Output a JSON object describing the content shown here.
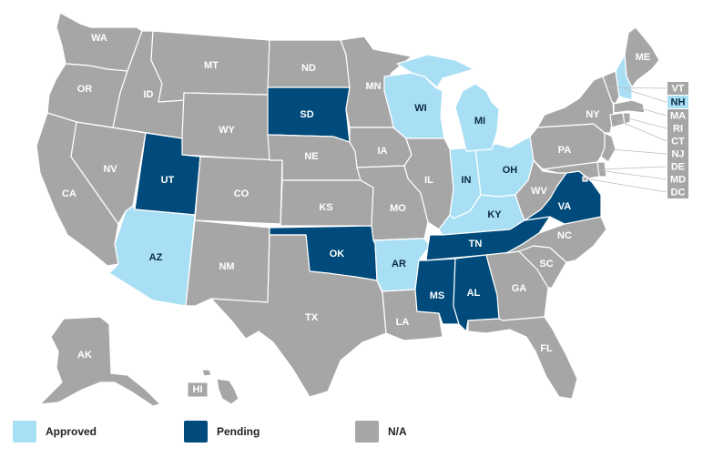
{
  "colors": {
    "approved": "#a9dff4",
    "pending": "#004b7b",
    "na": "#a6a6a6",
    "text_light": "#ffffff",
    "text_dark": "#0b2a45"
  },
  "legend": [
    {
      "key": "approved",
      "label": "Approved"
    },
    {
      "key": "pending",
      "label": "Pending"
    },
    {
      "key": "na",
      "label": "N/A"
    }
  ],
  "states": [
    {
      "code": "WA",
      "status": "na"
    },
    {
      "code": "OR",
      "status": "na"
    },
    {
      "code": "CA",
      "status": "na"
    },
    {
      "code": "ID",
      "status": "na"
    },
    {
      "code": "NV",
      "status": "na"
    },
    {
      "code": "MT",
      "status": "na"
    },
    {
      "code": "WY",
      "status": "na"
    },
    {
      "code": "UT",
      "status": "pending"
    },
    {
      "code": "AZ",
      "status": "approved"
    },
    {
      "code": "CO",
      "status": "na"
    },
    {
      "code": "NM",
      "status": "na"
    },
    {
      "code": "ND",
      "status": "na"
    },
    {
      "code": "SD",
      "status": "pending"
    },
    {
      "code": "NE",
      "status": "na"
    },
    {
      "code": "KS",
      "status": "na"
    },
    {
      "code": "OK",
      "status": "pending"
    },
    {
      "code": "TX",
      "status": "na"
    },
    {
      "code": "MN",
      "status": "na"
    },
    {
      "code": "IA",
      "status": "na"
    },
    {
      "code": "MO",
      "status": "na"
    },
    {
      "code": "AR",
      "status": "approved"
    },
    {
      "code": "LA",
      "status": "na"
    },
    {
      "code": "WI",
      "status": "approved"
    },
    {
      "code": "IL",
      "status": "na"
    },
    {
      "code": "MI",
      "status": "approved"
    },
    {
      "code": "IN",
      "status": "approved"
    },
    {
      "code": "OH",
      "status": "approved"
    },
    {
      "code": "KY",
      "status": "approved"
    },
    {
      "code": "TN",
      "status": "pending"
    },
    {
      "code": "MS",
      "status": "pending"
    },
    {
      "code": "AL",
      "status": "pending"
    },
    {
      "code": "GA",
      "status": "na"
    },
    {
      "code": "FL",
      "status": "na"
    },
    {
      "code": "SC",
      "status": "na"
    },
    {
      "code": "NC",
      "status": "na"
    },
    {
      "code": "VA",
      "status": "pending"
    },
    {
      "code": "WV",
      "status": "na"
    },
    {
      "code": "PA",
      "status": "na"
    },
    {
      "code": "NY",
      "status": "na"
    },
    {
      "code": "ME",
      "status": "na"
    },
    {
      "code": "AK",
      "status": "na"
    },
    {
      "code": "HI",
      "status": "na"
    },
    {
      "code": "VT",
      "status": "na"
    },
    {
      "code": "NH",
      "status": "approved"
    },
    {
      "code": "MA",
      "status": "na"
    },
    {
      "code": "RI",
      "status": "na"
    },
    {
      "code": "CT",
      "status": "na"
    },
    {
      "code": "NJ",
      "status": "na"
    },
    {
      "code": "DE",
      "status": "na"
    },
    {
      "code": "MD",
      "status": "na"
    },
    {
      "code": "DC",
      "status": "na"
    }
  ]
}
